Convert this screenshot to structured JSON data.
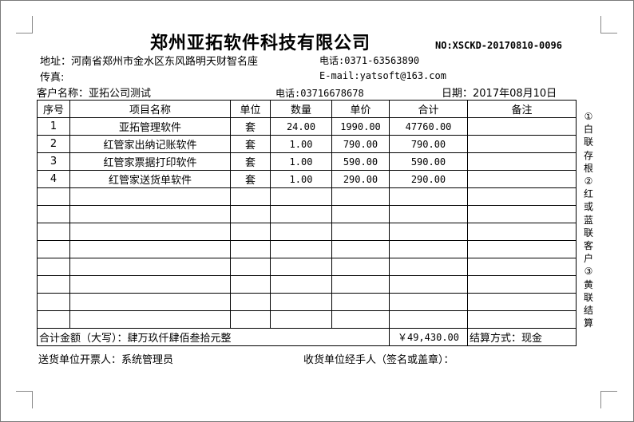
{
  "company": "郑州亚拓软件科技有限公司",
  "doc_no": "NO:XSCKD-20170810-0096",
  "address": "地址：河南省郑州市金水区东风路明天财智名座",
  "phone": "电话:0371-63563890",
  "fax": "传真:",
  "email": "E-mail:yatsoft@163.com",
  "customer": "客户名称：亚拓公司测试",
  "customer_phone": "电话:03716678678",
  "date": "日期：2017年08月10日",
  "headers": [
    "序号",
    "项目名称",
    "单位",
    "数量",
    "单价",
    "合计",
    "备注"
  ],
  "rows": [
    [
      "1",
      "亚拓管理软件",
      "套",
      "24.00",
      "1990.00",
      "47760.00",
      ""
    ],
    [
      "2",
      "红管家出纳记账软件",
      "套",
      "1.00",
      "790.00",
      "790.00",
      ""
    ],
    [
      "3",
      "红管家票据打印软件",
      "套",
      "1.00",
      "590.00",
      "590.00",
      ""
    ],
    [
      "4",
      "红管家送货单软件",
      "套",
      "1.00",
      "290.00",
      "290.00",
      ""
    ]
  ],
  "empty_rows": 8,
  "total_words": "合计金额（大写）：肆万玖仟肆佰叁拾元整",
  "total_amount": "￥49,430.00",
  "payment": "结算方式：现金",
  "issuer": "送货单位开票人：系统管理员",
  "receiver": "收货单位经手人（签名或盖章）：",
  "side_note": "①白联存根②红或蓝联客户③黄联结算"
}
